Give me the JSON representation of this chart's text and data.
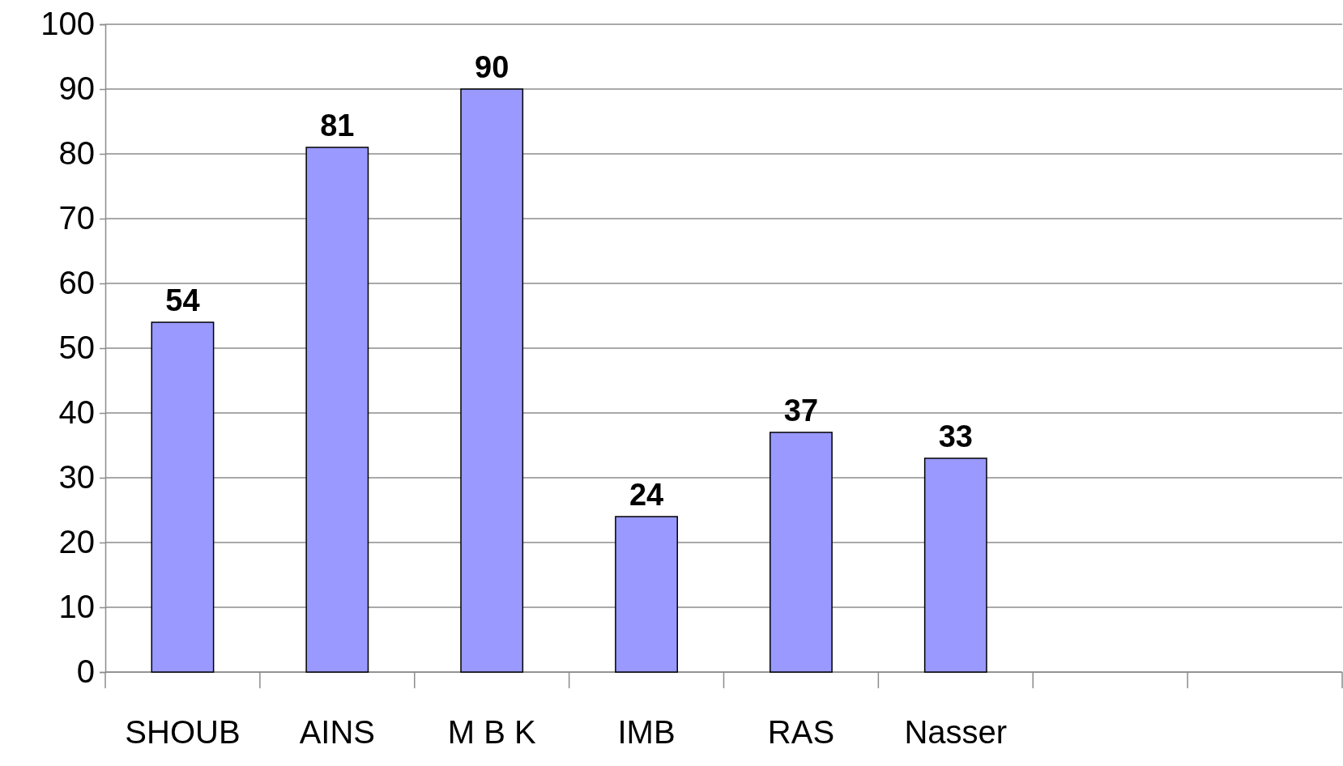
{
  "chart_data": {
    "type": "bar",
    "categories": [
      "SHOUB",
      "AINS",
      "M B K",
      "IMB",
      "RAS",
      "Nasser",
      null,
      null
    ],
    "values": [
      54,
      81,
      90,
      24,
      37,
      33,
      null,
      null
    ],
    "color": "#9999ff",
    "ylim": [
      0,
      100
    ],
    "yticks": [
      0,
      10,
      20,
      30,
      40,
      50,
      60,
      70,
      80,
      90,
      100
    ],
    "grid": "y",
    "data_labels": true
  }
}
